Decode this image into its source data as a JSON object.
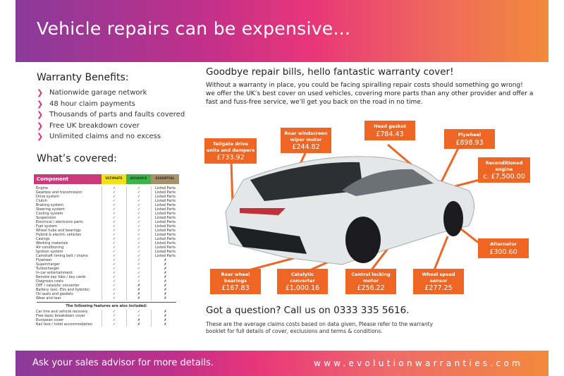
{
  "header": {
    "title": "Vehicle repairs can be expensive..."
  },
  "benefits": {
    "title": "Warranty Benefits:",
    "items": [
      "Nationwide garage network",
      "48 hour claim payments",
      "Thousands of parts and faults covered",
      "Free UK breakdown cover",
      "Unlimited claims and no excess"
    ]
  },
  "covered": {
    "title": "What’s covered:",
    "headers": [
      "Component",
      "ULTIMATE",
      "ADVANCE",
      "ESSENTIAL"
    ],
    "header_colors": [
      "#cc3a7c",
      "#f2e11a",
      "#3bb54a",
      "#a8926a"
    ],
    "rows": [
      [
        "Engine",
        "✓",
        "✓",
        "Listed Parts"
      ],
      [
        "Gearbox and transmission",
        "✓",
        "✓",
        "Listed Parts"
      ],
      [
        "Drive system",
        "✓",
        "✓",
        "Listed Parts"
      ],
      [
        "Clutch",
        "✓",
        "✓",
        "Listed Parts"
      ],
      [
        "Braking system",
        "✓",
        "✓",
        "Listed Parts"
      ],
      [
        "Steering system",
        "✓",
        "✓",
        "Listed Parts"
      ],
      [
        "Cooling system",
        "✓",
        "✓",
        "Listed Parts"
      ],
      [
        "Suspension",
        "✓",
        "✓",
        "Listed Parts"
      ],
      [
        "Electrical / electronic parts",
        "✓",
        "✓",
        "Listed Parts"
      ],
      [
        "Fuel system",
        "✓",
        "✓",
        "Listed Parts"
      ],
      [
        "Wheel hubs and bearings",
        "✓",
        "✓",
        "Listed Parts"
      ],
      [
        "Hybrid & electric vehicles",
        "✓",
        "✓",
        "Listed Parts"
      ],
      [
        "Casings",
        "✓",
        "✓",
        "Listed Parts"
      ],
      [
        "Working materials",
        "✓",
        "✓",
        "Listed Parts"
      ],
      [
        "Air conditioning",
        "✓",
        "✓",
        "Listed Parts"
      ],
      [
        "Ignition system",
        "✓",
        "✓",
        "Listed Parts"
      ],
      [
        "Camshaft timing belt / chains",
        "✓",
        "✓",
        "Listed Parts"
      ],
      [
        "Flywheel",
        "✓",
        "✓",
        "✗"
      ],
      [
        "Supercharger",
        "✓",
        "✓",
        "✗"
      ],
      [
        "Turbocharger",
        "✓",
        "✓",
        "✗"
      ],
      [
        "In-car entertainment",
        "✓",
        "✓",
        "✗"
      ],
      [
        "Remote key fobs / key cards",
        "✓",
        "✓",
        "✗"
      ],
      [
        "Diagnosis costs",
        "✓",
        "✓",
        "✗"
      ],
      [
        "DPF / catalytic converter",
        "✓",
        "✗",
        "✗"
      ],
      [
        "Battery (exc. EVs and hybrids)",
        "✓",
        "✗",
        "✗"
      ],
      [
        "Oil seals and gaskets",
        "✓",
        "✗",
        "✗"
      ],
      [
        "Wear and tear",
        "✓",
        "✗",
        "✗"
      ]
    ],
    "extras_title": "The following features are also included:",
    "extras": [
      [
        "Car hire and vehicle recovery",
        "✓",
        "✓",
        "✗"
      ],
      [
        "Free basic breakdown cover",
        "✓",
        "✓",
        "✗"
      ],
      [
        "European cover",
        "✓",
        "✗",
        "✗"
      ],
      [
        "Rail fare / hotel accommodation",
        "✓",
        "✗",
        "✗"
      ]
    ]
  },
  "intro": {
    "title": "Goodbye repair bills, hello fantastic warranty cover!",
    "body": "Without a warranty in place, you could be facing spiralling repair costs should something go wrong! we offer the UK’s best cover on used vehicles, covering more parts than any other provider and offer a fast and fuss-free service, we’ll get you back on the road in no time."
  },
  "callouts": [
    {
      "label": "Tailgate drive units and dampers",
      "price": "£733.92"
    },
    {
      "label": "Rear windscreen wiper motor",
      "price": "£244.82"
    },
    {
      "label": "Head gasket",
      "price": "£784.43"
    },
    {
      "label": "Flywheel",
      "price": "£898.93"
    },
    {
      "label": "Reconditioned engine",
      "price": "c. £7,500.00"
    },
    {
      "label": "Alternator",
      "price": "£300.60"
    },
    {
      "label": "Rear wheel bearings",
      "price": "£167.83"
    },
    {
      "label": "Catalytic converter",
      "price": "£1,000.16"
    },
    {
      "label": "Central locking motor",
      "price": "£256.22"
    },
    {
      "label": "Wheel speed sensor",
      "price": "£277.25"
    }
  ],
  "question": {
    "title": "Got a question? Call us on 0333 335 5616.",
    "note": "These are the average claims costs based on data given, Please refer to the warranty booklet for full details of cover, exclusions and terms & conditions."
  },
  "footer": {
    "left": "Ask your sales advisor for more details.",
    "right": "www.evolutionwarranties.com"
  },
  "colors": {
    "accent": "#ee6524",
    "pink": "#e0307a",
    "purple": "#8a3a9a"
  }
}
